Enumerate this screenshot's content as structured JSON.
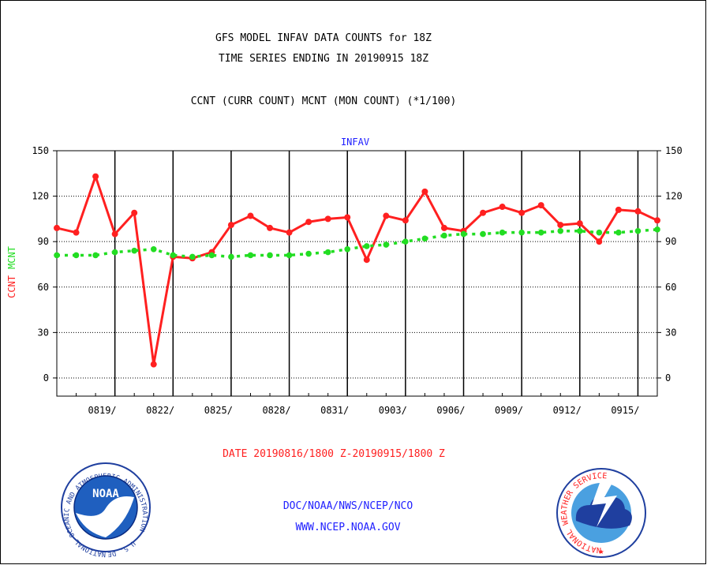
{
  "header": {
    "title_line1": "GFS MODEL INFAV DATA COUNTS for 18Z",
    "title_line2": "TIME SERIES ENDING IN 20190915 18Z",
    "subtitle": "CCNT (CURR COUNT) MCNT (MON COUNT) (*1/100)"
  },
  "footer": {
    "date_range": "DATE 20190816/1800 Z-20190915/1800 Z",
    "org": "DOC/NOAA/NWS/NCEP/NCO",
    "url": "WWW.NCEP.NOAA.GOV"
  },
  "logos": {
    "noaa_text": "NOAA",
    "noaa_ring": "NATIONAL OCEANIC AND ATMOSPHERIC ADMINISTRATION · U.S. DEPARTMENT OF COMMERCE ·",
    "nws_ring": "NATIONAL WEATHER SERVICE"
  },
  "colors": {
    "ccnt": "#ff2020",
    "mcnt": "#22dd22",
    "title": "#000000",
    "footer_date": "#ff2020",
    "footer_link": "#2020ff",
    "panel_label": "#2020ff"
  },
  "chart_data": {
    "type": "line",
    "panel_label": "INFAV",
    "ylabel_left": [
      "CCNT",
      "MCNT"
    ],
    "ylim": [
      -12,
      150
    ],
    "yticks": [
      0,
      30,
      60,
      90,
      120,
      150
    ],
    "grid": true,
    "x": [
      "0816",
      "0817",
      "0818",
      "0819",
      "0820",
      "0821",
      "0822",
      "0823",
      "0824",
      "0825",
      "0826",
      "0827",
      "0828",
      "0829",
      "0830",
      "0831",
      "0901",
      "0902",
      "0903",
      "0904",
      "0905",
      "0906",
      "0907",
      "0908",
      "0909",
      "0910",
      "0911",
      "0912",
      "0913",
      "0914",
      "0915",
      "0916"
    ],
    "xtick_labels": [
      "0819/",
      "0822/",
      "0825/",
      "0828/",
      "0831/",
      "0903/",
      "0906/",
      "0909/",
      "0912/",
      "0915/"
    ],
    "series": [
      {
        "name": "CCNT",
        "x": [
          0,
          1,
          2,
          3,
          4,
          5,
          6,
          7,
          8,
          9,
          10,
          11,
          12,
          13,
          14,
          15,
          16,
          17,
          18,
          19,
          20,
          21,
          22,
          23,
          24,
          25,
          26,
          27,
          28,
          29,
          30,
          31
        ],
        "values": [
          99,
          96,
          133,
          95,
          109,
          9,
          80,
          79,
          83,
          101,
          107,
          99,
          96,
          103,
          105,
          106,
          78,
          107,
          104,
          123,
          99,
          97,
          109,
          113,
          109,
          114,
          101,
          102,
          90,
          111,
          110,
          104
        ]
      },
      {
        "name": "MCNT",
        "x": [
          0,
          1,
          2,
          3,
          4,
          5,
          6,
          7,
          8,
          9,
          10,
          11,
          12,
          13,
          14,
          15,
          16,
          17,
          18,
          19,
          20,
          21,
          22,
          23,
          24,
          25,
          26,
          27,
          28,
          29,
          30,
          31
        ],
        "values": [
          81,
          81,
          81,
          83,
          84,
          85,
          81,
          80,
          81,
          80,
          81,
          81,
          81,
          82,
          83,
          85,
          87,
          88,
          90,
          92,
          94,
          95,
          95,
          96,
          96,
          96,
          97,
          97,
          96,
          96,
          97,
          98
        ]
      }
    ]
  }
}
